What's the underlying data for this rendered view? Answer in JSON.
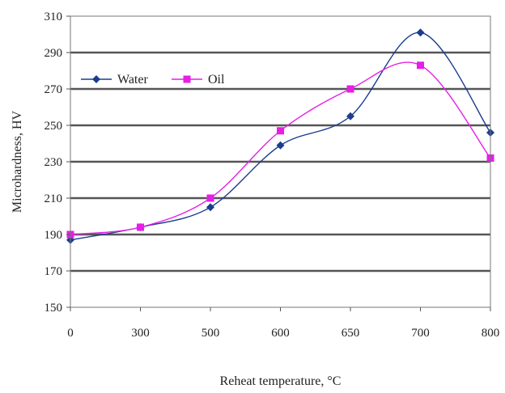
{
  "chart_data": {
    "type": "line",
    "title": "",
    "xlabel": "Reheat temperature, °C",
    "ylabel": "Microhardness, HV",
    "categories": [
      "0",
      "300",
      "500",
      "600",
      "650",
      "700",
      "800"
    ],
    "ylim": [
      150,
      310
    ],
    "yticks": [
      150,
      170,
      190,
      210,
      230,
      250,
      270,
      290,
      310
    ],
    "grid": true,
    "legend_position": "top-left",
    "series": [
      {
        "name": "Water",
        "values": [
          187,
          194,
          205,
          239,
          255,
          301,
          246
        ],
        "color": "#1b3d8f",
        "marker": "diamond"
      },
      {
        "name": "Oil",
        "values": [
          190,
          194,
          210,
          247,
          270,
          283,
          232
        ],
        "color": "#e61ee6",
        "marker": "square"
      }
    ]
  }
}
